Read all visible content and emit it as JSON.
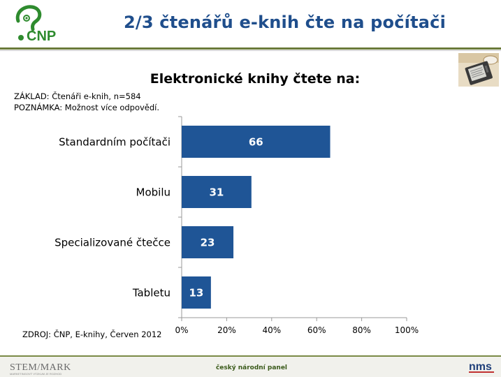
{
  "header": {
    "logo_text": "CNP",
    "title": "2/3 čtenářů e-knih čte na počítači"
  },
  "chart_info": {
    "title": "Elektronické knihy čtete na:",
    "base_note": "ZÁKLAD: Čtenáři e-knih, n=584",
    "remark_note": "POZNÁMKA: Možnost více odpovědí.",
    "source_note": "ZDROJ: ČNP, E-knihy, Červen 2012"
  },
  "chart_data": {
    "type": "bar",
    "orientation": "horizontal",
    "title": "Elektronické knihy čtete na:",
    "categories": [
      "Standardním počítači",
      "Mobilu",
      "Specializované čtečce",
      "Tabletu"
    ],
    "values": [
      66,
      31,
      23,
      13
    ],
    "value_labels": [
      "66",
      "31",
      "23",
      "13"
    ],
    "xlim": [
      0,
      100
    ],
    "x_ticks": [
      "0%",
      "20%",
      "40%",
      "60%",
      "80%",
      "100%"
    ],
    "grid": false,
    "legend": "none",
    "bar_color": "#1f5596"
  },
  "footer": {
    "left_logo_text": "STEM/MARK",
    "left_logo_subtext": "MARKETINGOVÝ VÝZKUM JE ROZHOD",
    "center_text": "český národní panel",
    "right_logo_text": "nms"
  },
  "colors": {
    "title_blue": "#1f4e8c",
    "bar_blue": "#1f5596",
    "olive_rule": "#6a7a3a",
    "logo_green": "#2e8b2e"
  }
}
